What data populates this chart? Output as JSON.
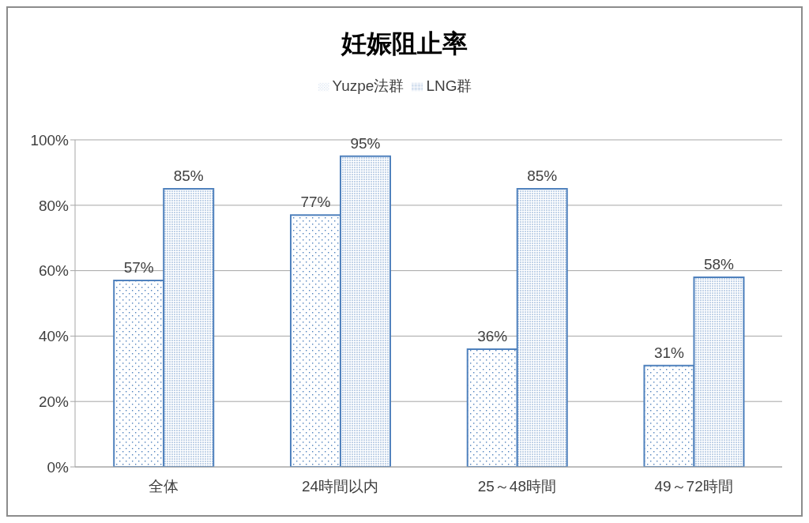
{
  "chart_data": {
    "type": "bar",
    "title": "妊娠阻止率",
    "categories": [
      "全体",
      "24時間以内",
      "25～48時間",
      "49～72時間"
    ],
    "series": [
      {
        "name": "Yuzpe法群",
        "color": "#4f81bd",
        "values": [
          57,
          77,
          36,
          31
        ],
        "value_labels": [
          "57%",
          "77%",
          "36%",
          "31%"
        ]
      },
      {
        "name": "LNG群",
        "color": "#4f81bd",
        "values": [
          85,
          95,
          85,
          58
        ],
        "value_labels": [
          "85%",
          "95%",
          "85%",
          "58%"
        ]
      }
    ],
    "ylim": [
      0,
      100
    ],
    "yticks": [
      {
        "value": 0,
        "label": "0%"
      },
      {
        "value": 20,
        "label": "20%"
      },
      {
        "value": 40,
        "label": "40%"
      },
      {
        "value": 60,
        "label": "60%"
      },
      {
        "value": 80,
        "label": "80%"
      },
      {
        "value": 100,
        "label": "100%"
      }
    ],
    "grid": "y",
    "legend": "top"
  }
}
